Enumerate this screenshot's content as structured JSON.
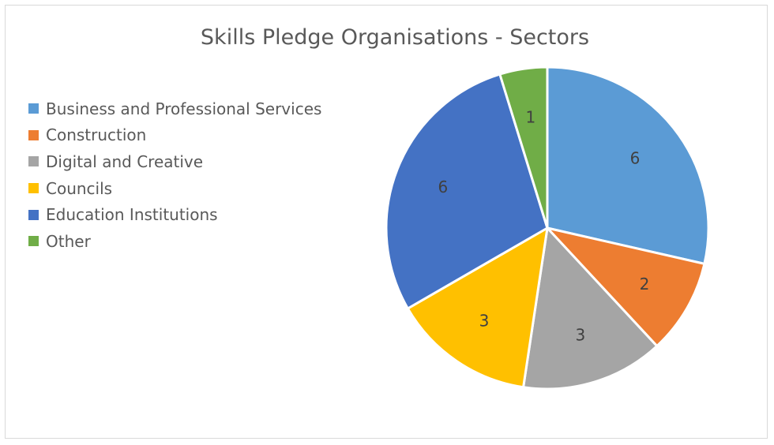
{
  "chart_data": {
    "type": "pie",
    "title": "Skills Pledge Organisations - Sectors",
    "categories": [
      "Business and Professional Services",
      "Construction",
      "Digital and Creative",
      "Councils",
      "Education Institutions",
      "Other"
    ],
    "values": [
      6,
      2,
      3,
      3,
      6,
      1
    ],
    "colors": [
      "#5b9bd5",
      "#ed7d31",
      "#a5a5a5",
      "#ffc000",
      "#4472c4",
      "#70ad47"
    ],
    "data_labels": [
      "6",
      "2",
      "3",
      "3",
      "6",
      "1"
    ],
    "legend_position": "left",
    "start_angle": "12 o'clock, clockwise"
  }
}
